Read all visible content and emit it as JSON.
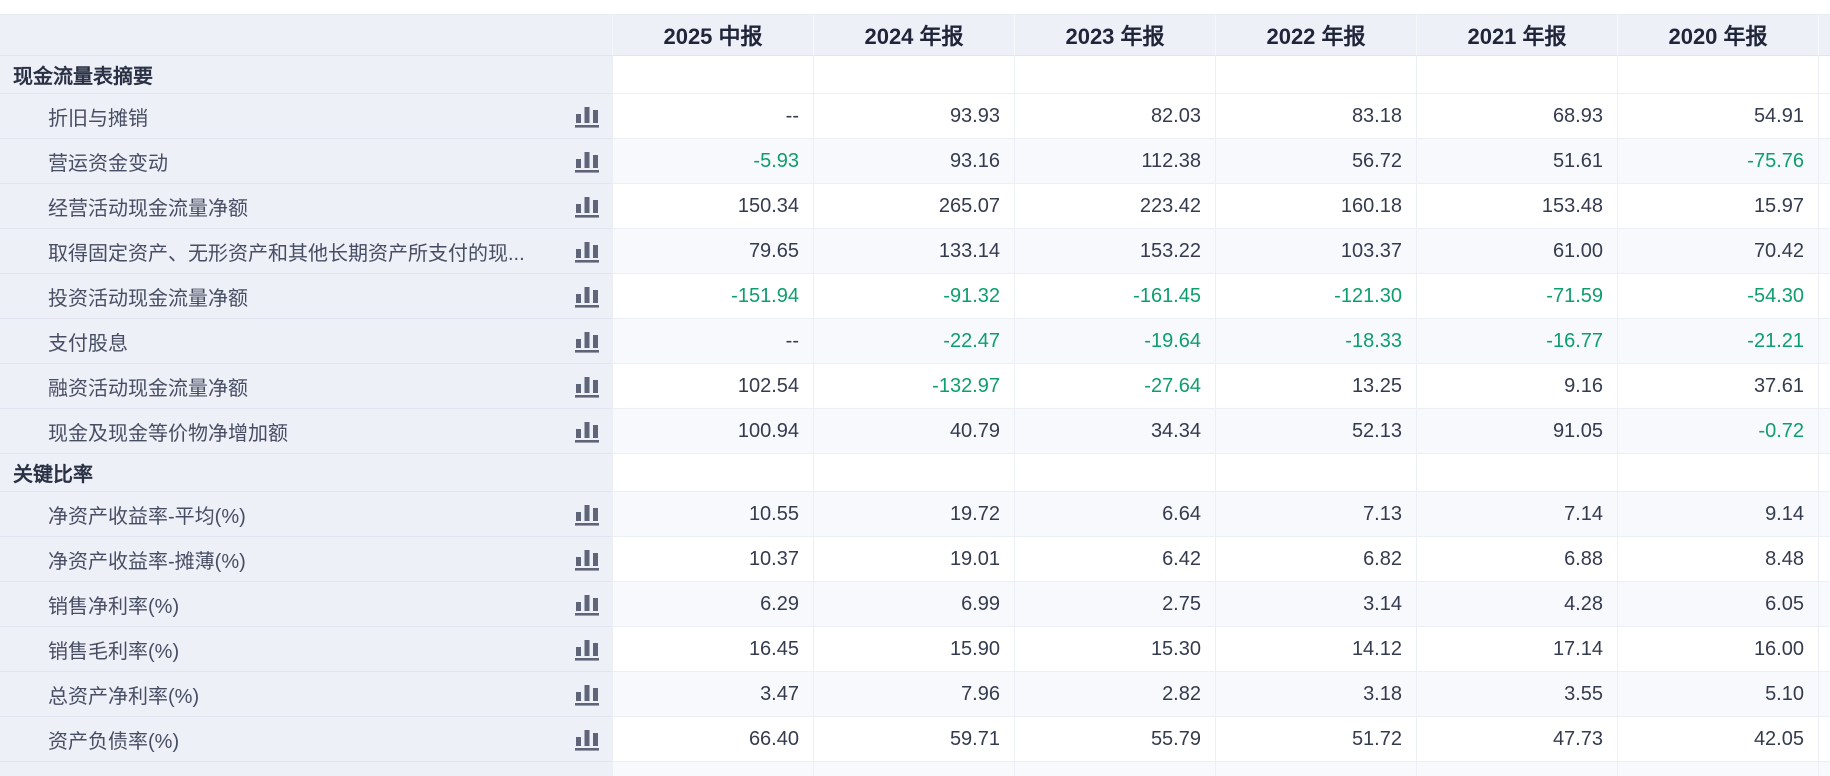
{
  "table": {
    "columns": [
      "2025 中报",
      "2024 年报",
      "2023 年报",
      "2022 年报",
      "2021 年报",
      "2020 年报"
    ],
    "rows": [
      {
        "type": "section",
        "label": "现金流量表摘要"
      },
      {
        "type": "data",
        "label": "折旧与摊销",
        "values": [
          "--",
          "93.93",
          "82.03",
          "83.18",
          "68.93",
          "54.91"
        ]
      },
      {
        "type": "data",
        "label": "营运资金变动",
        "values": [
          "-5.93",
          "93.16",
          "112.38",
          "56.72",
          "51.61",
          "-75.76"
        ]
      },
      {
        "type": "data",
        "label": "经营活动现金流量净额",
        "values": [
          "150.34",
          "265.07",
          "223.42",
          "160.18",
          "153.48",
          "15.97"
        ]
      },
      {
        "type": "data",
        "label": "取得固定资产、无形资产和其他长期资产所支付的现...",
        "values": [
          "79.65",
          "133.14",
          "153.22",
          "103.37",
          "61.00",
          "70.42"
        ]
      },
      {
        "type": "data",
        "label": "投资活动现金流量净额",
        "values": [
          "-151.94",
          "-91.32",
          "-161.45",
          "-121.30",
          "-71.59",
          "-54.30"
        ]
      },
      {
        "type": "data",
        "label": "支付股息",
        "values": [
          "--",
          "-22.47",
          "-19.64",
          "-18.33",
          "-16.77",
          "-21.21"
        ]
      },
      {
        "type": "data",
        "label": "融资活动现金流量净额",
        "values": [
          "102.54",
          "-132.97",
          "-27.64",
          "13.25",
          "9.16",
          "37.61"
        ]
      },
      {
        "type": "data",
        "label": "现金及现金等价物净增加额",
        "values": [
          "100.94",
          "40.79",
          "34.34",
          "52.13",
          "91.05",
          "-0.72"
        ]
      },
      {
        "type": "section",
        "label": "关键比率"
      },
      {
        "type": "data",
        "label": "净资产收益率-平均(%)",
        "values": [
          "10.55",
          "19.72",
          "6.64",
          "7.13",
          "7.14",
          "9.14"
        ]
      },
      {
        "type": "data",
        "label": "净资产收益率-摊薄(%)",
        "values": [
          "10.37",
          "19.01",
          "6.42",
          "6.82",
          "6.88",
          "8.48"
        ]
      },
      {
        "type": "data",
        "label": "销售净利率(%)",
        "values": [
          "6.29",
          "6.99",
          "2.75",
          "3.14",
          "4.28",
          "6.05"
        ]
      },
      {
        "type": "data",
        "label": "销售毛利率(%)",
        "values": [
          "16.45",
          "15.90",
          "15.30",
          "14.12",
          "17.14",
          "16.00"
        ]
      },
      {
        "type": "data",
        "label": "总资产净利率(%)",
        "values": [
          "3.47",
          "7.96",
          "2.82",
          "3.18",
          "3.55",
          "5.10"
        ]
      },
      {
        "type": "data",
        "label": "资产负债率(%)",
        "values": [
          "66.40",
          "59.71",
          "55.79",
          "51.72",
          "47.73",
          "42.05"
        ]
      }
    ],
    "empty_value_placeholder": "--",
    "partial_row_visible": true,
    "icon_name": "bar-chart-icon",
    "colors": {
      "negative_value": "#0d9e6d",
      "value_text": "#353b4e",
      "header_background": "#eef0f8",
      "row_alt_background": "#f8f9fc"
    }
  }
}
